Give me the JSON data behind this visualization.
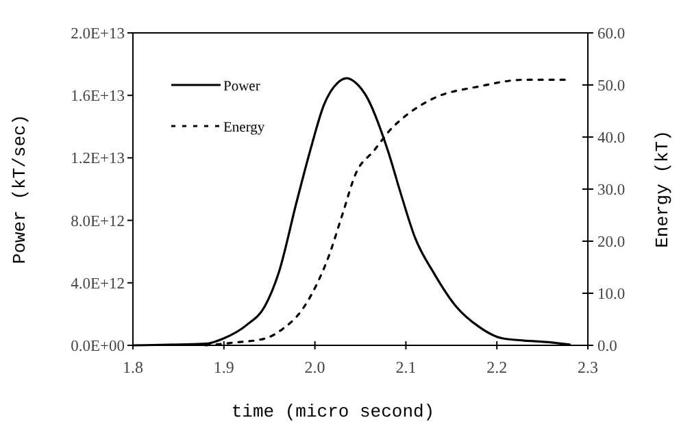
{
  "chart_data": {
    "type": "line",
    "xlabel": "time (micro second)",
    "ylabel": "Power (kT/sec)",
    "y2label": "Energy (kT)",
    "xlim": [
      1.8,
      2.3
    ],
    "xticks": [
      1.8,
      1.9,
      {
        "value": 2,
        "label": "2.0"
      },
      2.1,
      2.2,
      2.3
    ],
    "ylim": [
      0,
      20000000000000.0
    ],
    "yticks": [
      {
        "value": 0,
        "label": "0.0E+00"
      },
      {
        "value": 4000000000000.0,
        "label": "4.0E+12"
      },
      {
        "value": 8000000000000.0,
        "label": "8.0E+12"
      },
      {
        "value": 12000000000000.0,
        "label": "1.2E+13"
      },
      {
        "value": 16000000000000.0,
        "label": "1.6E+13"
      },
      {
        "value": 20000000000000.0,
        "label": "2.0E+13"
      }
    ],
    "y2lim": [
      0,
      60
    ],
    "y2ticks": [
      {
        "value": 0,
        "label": "0.0"
      },
      {
        "value": 10,
        "label": "10.0"
      },
      {
        "value": 20,
        "label": "20.0"
      },
      {
        "value": 30,
        "label": "30.0"
      },
      {
        "value": 40,
        "label": "40.0"
      },
      {
        "value": 50,
        "label": "50.0"
      },
      {
        "value": 60,
        "label": "60.0"
      }
    ],
    "grid": false,
    "legend": "top left",
    "marker": "none",
    "series": [
      {
        "name": "Power",
        "color": "#000000",
        "line_style": "solid",
        "x": [
          1.8,
          1.85,
          1.88,
          1.9,
          1.925,
          1.945,
          1.96,
          1.98,
          1.995,
          2.01,
          2.025,
          2.035,
          2.045,
          2.056,
          2.08,
          2.095,
          2.11,
          2.131,
          2.155,
          2.18,
          2.206,
          2.257,
          2.28
        ],
        "values": [
          0,
          50000000000.0,
          100000000000.0,
          450000000000.0,
          1300000000000.0,
          2500000000000.0,
          4600000000000.0,
          9200000000000.0,
          12500000000000.0,
          15400000000000.0,
          16800000000000.0,
          17100000000000.0,
          16800000000000.0,
          16000000000000.0,
          12500000000000.0,
          9600000000000.0,
          6900000000000.0,
          4600000000000.0,
          2500000000000.0,
          1200000000000.0,
          450000000000.0,
          200000000000.0,
          50000000000.0
        ]
      },
      {
        "name": "Energy",
        "color": "#000000",
        "line_style": "dotted",
        "axis": "y2",
        "x": [
          1.88,
          1.91,
          1.945,
          1.965,
          1.985,
          2.0,
          2.015,
          2.03,
          2.045,
          2.065,
          2.085,
          2.095,
          2.13,
          2.18,
          2.23,
          2.28
        ],
        "values": [
          0,
          0.5,
          1.3,
          3.2,
          6.6,
          11,
          17,
          25,
          33,
          37.4,
          41.8,
          43.4,
          47.4,
          49.7,
          51,
          51
        ]
      }
    ]
  }
}
